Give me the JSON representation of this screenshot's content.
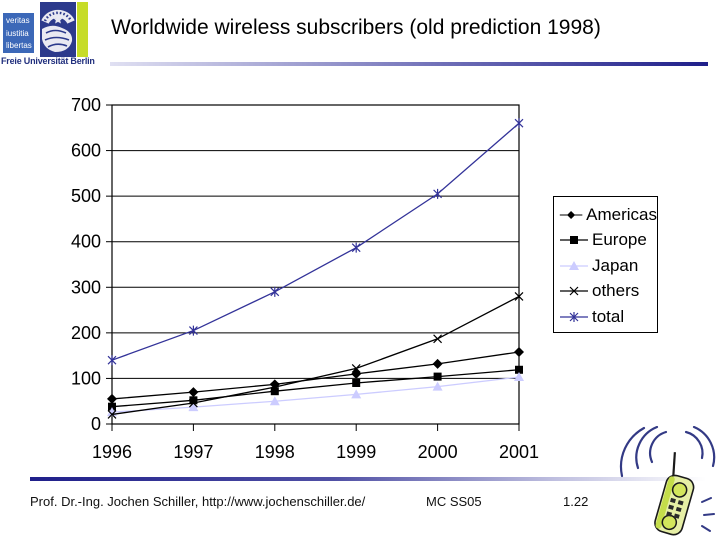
{
  "header": {
    "title": "Worldwide wireless subscribers (old prediction 1998)",
    "logo": {
      "motto_lines": [
        "veritas",
        "iustitia",
        "libertas"
      ],
      "university_name": "Freie Universität Berlin"
    }
  },
  "chart_data": {
    "type": "line",
    "title": "",
    "xlabel": "",
    "ylabel": "",
    "categories": [
      "1996",
      "1997",
      "1998",
      "1999",
      "2000",
      "2001"
    ],
    "series": [
      {
        "name": "Americas",
        "marker": "diamond",
        "color": "#000000",
        "values": [
          55,
          70,
          87,
          110,
          132,
          158
        ]
      },
      {
        "name": "Europe",
        "marker": "square",
        "color": "#000000",
        "values": [
          38,
          52,
          72,
          90,
          104,
          119
        ]
      },
      {
        "name": "Japan",
        "marker": "triangle",
        "color": "#ccccff",
        "values": [
          26,
          37,
          50,
          65,
          82,
          103
        ]
      },
      {
        "name": "others",
        "marker": "x",
        "color": "#000000",
        "values": [
          21,
          46,
          81,
          122,
          187,
          280
        ]
      },
      {
        "name": "total",
        "marker": "star",
        "color": "#333399",
        "values": [
          140,
          205,
          290,
          387,
          505,
          660
        ]
      }
    ],
    "ylim": [
      0,
      700
    ],
    "yticks": [
      0,
      100,
      200,
      300,
      400,
      500,
      600,
      700
    ],
    "grid": true,
    "legend_position": "right"
  },
  "footer": {
    "author": "Prof. Dr.-Ing. Jochen Schiller, http://www.jochenschiller.de/",
    "course": "MC SS05",
    "slide_number": "1.22"
  },
  "colors": {
    "logo_blue": "#3c68b8",
    "seal_navy": "#2c3a8c",
    "stripe_green": "#c6dc28",
    "rule_navy": "#1f1f8a",
    "japan_series": "#ccccff",
    "total_series": "#333399"
  }
}
